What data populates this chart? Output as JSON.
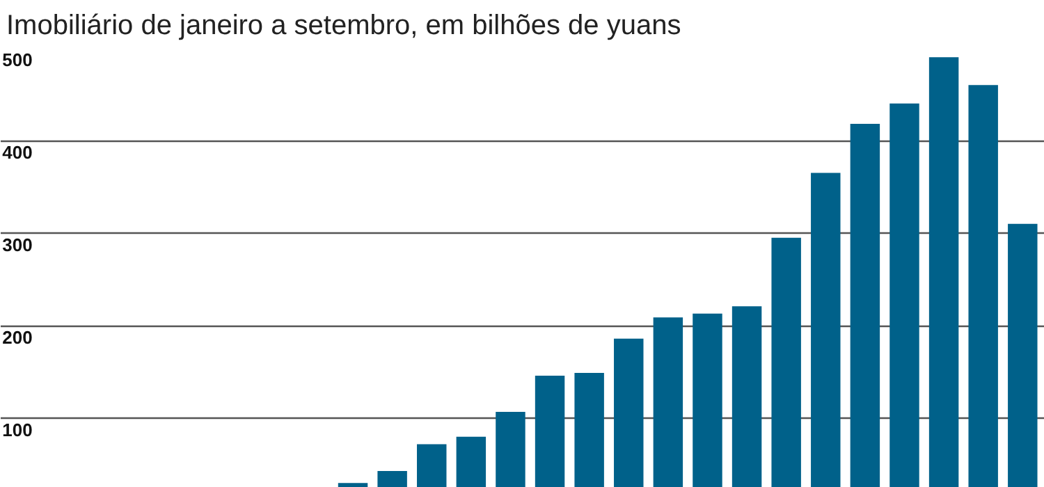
{
  "chart_data": {
    "type": "bar",
    "title": "Imobiliário de janeiro a setembro, em bilhões de yuans",
    "categories": [
      null,
      null,
      null,
      null,
      null,
      null,
      null,
      null,
      null,
      null,
      null,
      null,
      null,
      null,
      null,
      null,
      null,
      null,
      null,
      null,
      null,
      null,
      null,
      null,
      null,
      null
    ],
    "values": [
      null,
      null,
      null,
      null,
      null,
      null,
      null,
      null,
      30,
      43,
      72,
      80,
      107,
      146,
      149,
      186,
      209,
      213,
      221,
      295,
      365,
      418,
      440,
      490,
      460,
      310
    ],
    "color": "#00618a",
    "ylim": [
      25,
      500
    ],
    "yticks": [
      100,
      200,
      300,
      400,
      500
    ],
    "grid": "y",
    "tick_labels": "y"
  }
}
